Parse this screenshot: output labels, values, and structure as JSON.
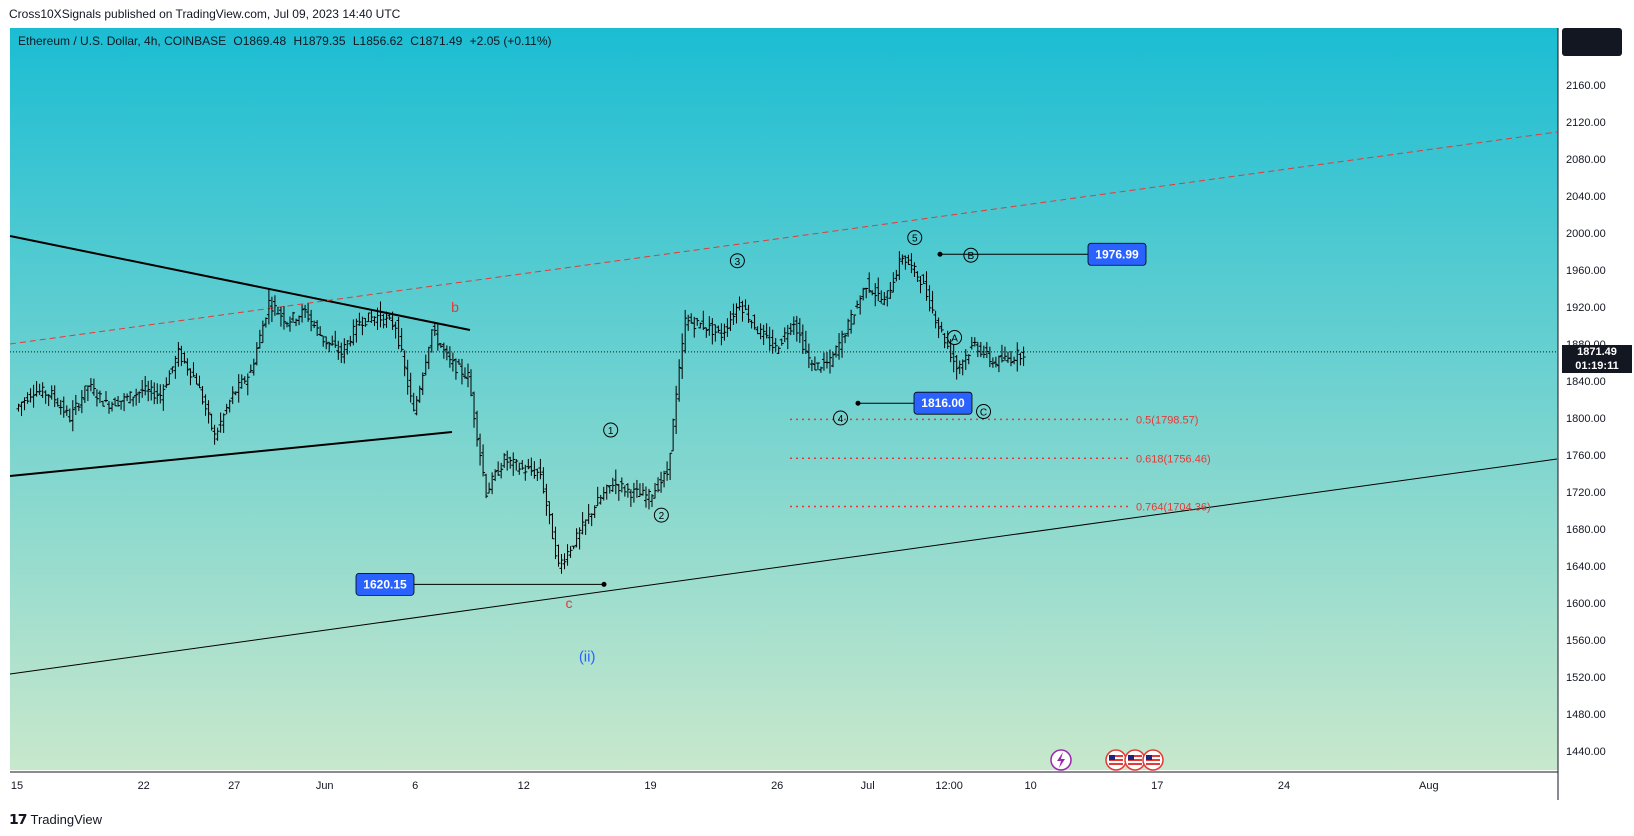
{
  "header": {
    "published_by": "Cross10XSignals published on TradingView.com, Jul 09, 2023 14:40 UTC"
  },
  "legend": {
    "symbol": "Ethereum / U.S. Dollar, 4h, COINBASE",
    "open": "O1869.48",
    "high": "H1879.35",
    "low": "L1856.62",
    "close": "C1871.49",
    "change": "+2.05 (+0.11%)"
  },
  "current_price": {
    "value": "1871.49",
    "countdown": "01:19:11"
  },
  "footer": {
    "brand": "TradingView"
  },
  "colors": {
    "bg_top": "#1bbdd3",
    "bg_bottom": "#c8e8cc",
    "price_label": "#2962ff",
    "fib": "#e53935",
    "wave_blue": "#2962ff",
    "wave_red": "#e53935"
  },
  "chart_data": {
    "type": "candlestick",
    "y_ticks": [
      2160,
      2120,
      2080,
      2040,
      2000,
      1960,
      1920,
      1880,
      1840,
      1800,
      1760,
      1720,
      1680,
      1640,
      1600,
      1560,
      1520,
      1480,
      1440
    ],
    "y_tick_labels": [
      "2160.00",
      "2120.00",
      "2080.00",
      "2040.00",
      "2000.00",
      "1960.00",
      "1920.00",
      "1880.00",
      "1840.00",
      "1800.00",
      "1760.00",
      "1720.00",
      "1680.00",
      "1640.00",
      "1600.00",
      "1560.00",
      "1520.00",
      "1480.00",
      "1440.00"
    ],
    "x_tick_labels": [
      {
        "label": "15",
        "day": 15
      },
      {
        "label": "22",
        "day": 22
      },
      {
        "label": "27",
        "day": 27
      },
      {
        "label": "Jun",
        "day": 32
      },
      {
        "label": "6",
        "day": 37
      },
      {
        "label": "12",
        "day": 43
      },
      {
        "label": "19",
        "day": 50
      },
      {
        "label": "26",
        "day": 57
      },
      {
        "label": "Jul",
        "day": 62
      },
      {
        "label": "12:00",
        "day": 66.5
      },
      {
        "label": "10",
        "day": 71
      },
      {
        "label": "17",
        "day": 78
      },
      {
        "label": "24",
        "day": 85
      },
      {
        "label": "Aug",
        "day": 93
      }
    ],
    "price_path": [
      [
        15,
        1810
      ],
      [
        16,
        1830
      ],
      [
        17,
        1825
      ],
      [
        18,
        1800
      ],
      [
        19,
        1835
      ],
      [
        20,
        1815
      ],
      [
        21,
        1820
      ],
      [
        22,
        1830
      ],
      [
        23,
        1825
      ],
      [
        24,
        1870
      ],
      [
        25,
        1840
      ],
      [
        26,
        1780
      ],
      [
        27,
        1825
      ],
      [
        28,
        1850
      ],
      [
        29,
        1925
      ],
      [
        30,
        1905
      ],
      [
        31,
        1915
      ],
      [
        32,
        1885
      ],
      [
        33,
        1870
      ],
      [
        34,
        1905
      ],
      [
        35,
        1910
      ],
      [
        36,
        1900
      ],
      [
        37,
        1805
      ],
      [
        38,
        1895
      ],
      [
        39,
        1860
      ],
      [
        40,
        1845
      ],
      [
        41,
        1720
      ],
      [
        42,
        1755
      ],
      [
        43,
        1745
      ],
      [
        44,
        1740
      ],
      [
        45,
        1640
      ],
      [
        46,
        1670
      ],
      [
        47,
        1705
      ],
      [
        48,
        1730
      ],
      [
        49,
        1720
      ],
      [
        50,
        1715
      ],
      [
        51,
        1740
      ],
      [
        52,
        1905
      ],
      [
        53,
        1900
      ],
      [
        54,
        1890
      ],
      [
        55,
        1925
      ],
      [
        56,
        1895
      ],
      [
        57,
        1875
      ],
      [
        58,
        1905
      ],
      [
        59,
        1855
      ],
      [
        60,
        1860
      ],
      [
        61,
        1900
      ],
      [
        62,
        1945
      ],
      [
        63,
        1925
      ],
      [
        64,
        1975
      ],
      [
        65,
        1950
      ],
      [
        66,
        1900
      ],
      [
        67,
        1855
      ],
      [
        68,
        1880
      ],
      [
        69,
        1860
      ],
      [
        70,
        1865
      ],
      [
        70.7,
        1871.49
      ]
    ],
    "annotations": {
      "labels": [
        {
          "text": "1976.99",
          "day": 68.5,
          "price": 1976.99
        },
        {
          "text": "1816.00",
          "day": 62.5,
          "price": 1816.0
        },
        {
          "text": "1620.15",
          "day": 40.5,
          "price": 1620.15
        }
      ],
      "waves": [
        {
          "text": "b",
          "day": 39.2,
          "price": 1920,
          "style": "red"
        },
        {
          "text": "c",
          "day": 45.5,
          "price": 1600,
          "style": "red"
        },
        {
          "text": "(ii)",
          "day": 46.5,
          "price": 1542,
          "style": "blue"
        },
        {
          "text": "1",
          "day": 47.8,
          "price": 1787,
          "style": "circle"
        },
        {
          "text": "2",
          "day": 50.6,
          "price": 1695,
          "style": "circle"
        },
        {
          "text": "3",
          "day": 54.8,
          "price": 1970,
          "style": "circle"
        },
        {
          "text": "4",
          "day": 60.5,
          "price": 1800,
          "style": "circle"
        },
        {
          "text": "5",
          "day": 64.6,
          "price": 1995,
          "style": "circle"
        },
        {
          "text": "A",
          "day": 66.8,
          "price": 1887,
          "style": "circle"
        },
        {
          "text": "B",
          "day": 67.7,
          "price": 1976,
          "style": "circle"
        },
        {
          "text": "C",
          "day": 68.4,
          "price": 1807,
          "style": "circle"
        }
      ],
      "fib_levels": [
        {
          "text": "0.5(1798.57)",
          "price": 1798.57
        },
        {
          "text": "0.618(1756.46)",
          "price": 1756.46
        },
        {
          "text": "0.764(1704.36)",
          "price": 1704.36
        }
      ]
    }
  }
}
